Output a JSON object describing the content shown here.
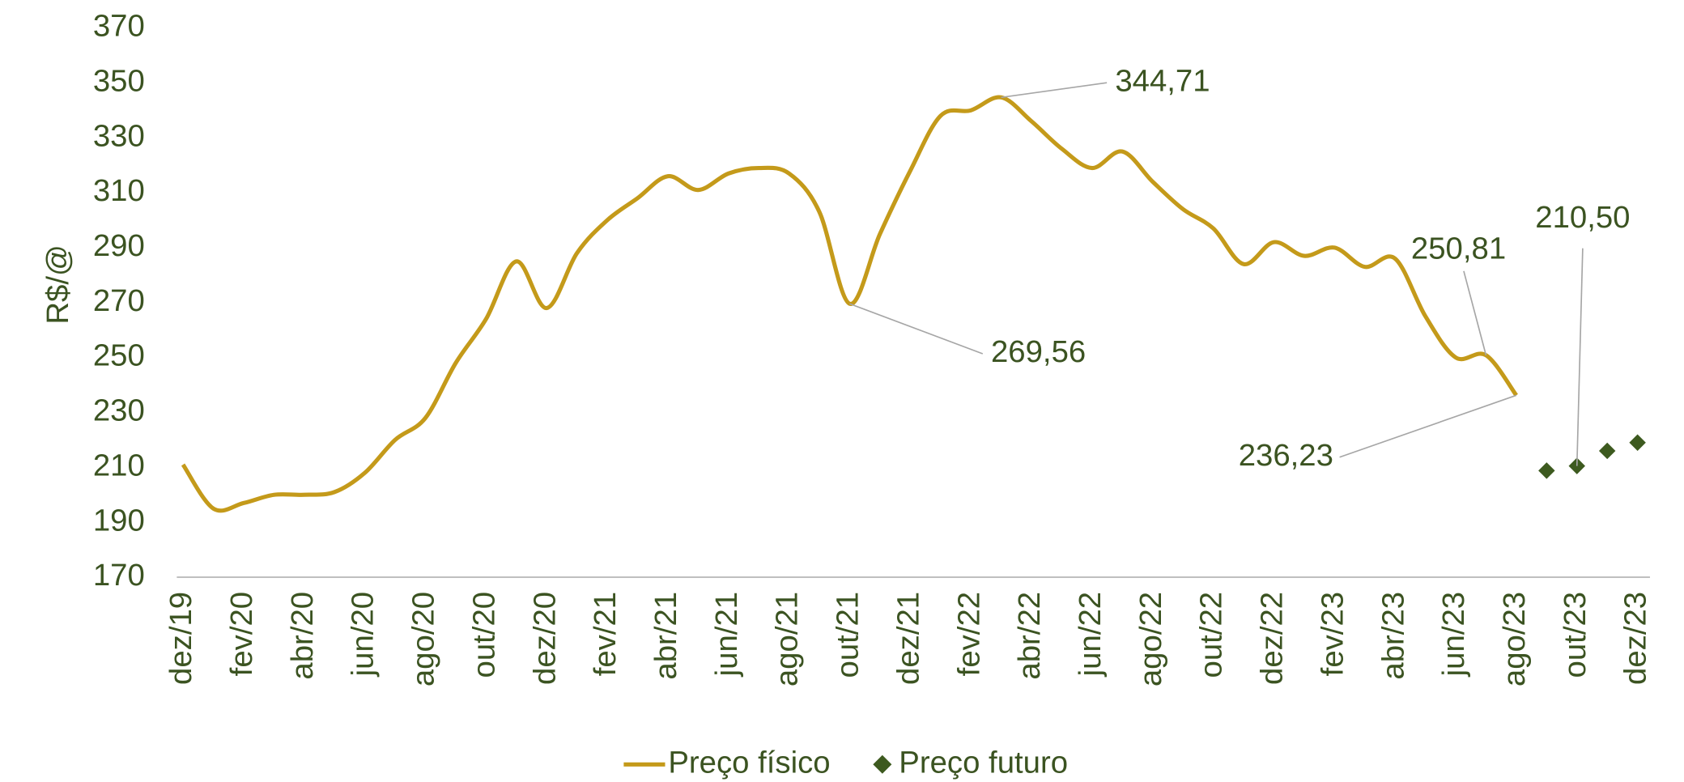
{
  "chart_data": {
    "type": "line",
    "y_label": "R$/@",
    "categories": [
      "dez/19",
      null,
      "fev/20",
      null,
      "abr/20",
      null,
      "jun/20",
      null,
      "ago/20",
      null,
      "out/20",
      null,
      "dez/20",
      null,
      "fev/21",
      null,
      "abr/21",
      null,
      "jun/21",
      null,
      "ago/21",
      null,
      "out/21",
      null,
      "dez/21",
      null,
      "fev/22",
      null,
      "abr/22",
      null,
      "jun/22",
      null,
      "ago/22",
      null,
      "out/22",
      null,
      "dez/22",
      null,
      "fev/23",
      null,
      "abr/23",
      null,
      "jun/23",
      null,
      "ago/23",
      null,
      "out/23",
      null,
      "dez/23"
    ],
    "series": [
      {
        "name": "Preço físico",
        "color": "#c49a1a",
        "marker": "line",
        "values": [
          211,
          195,
          197,
          200,
          200,
          201,
          208,
          220,
          228,
          248,
          264,
          285,
          268,
          288,
          300,
          308,
          316,
          311,
          317,
          319,
          317,
          303,
          269.56,
          295,
          318,
          338,
          340,
          344.71,
          336,
          326,
          319,
          325,
          314,
          304,
          297,
          284,
          292,
          287,
          290,
          283,
          286,
          265,
          250,
          250.81,
          236.23,
          null,
          null,
          null,
          null
        ],
        "value_labels": [
          null,
          null,
          null,
          null,
          null,
          null,
          null,
          null,
          null,
          null,
          null,
          null,
          null,
          null,
          null,
          null,
          null,
          null,
          null,
          null,
          null,
          null,
          "269,56",
          null,
          null,
          null,
          null,
          "344,71",
          null,
          null,
          null,
          null,
          null,
          null,
          null,
          null,
          null,
          null,
          null,
          null,
          null,
          null,
          null,
          "250,81",
          "236,23",
          null,
          null,
          null,
          null
        ]
      },
      {
        "name": "Preço futuro",
        "color": "#3d5a1f",
        "marker": "diamond",
        "values": [
          null,
          null,
          null,
          null,
          null,
          null,
          null,
          null,
          null,
          null,
          null,
          null,
          null,
          null,
          null,
          null,
          null,
          null,
          null,
          null,
          null,
          null,
          null,
          null,
          null,
          null,
          null,
          null,
          null,
          null,
          null,
          null,
          null,
          null,
          null,
          null,
          null,
          null,
          null,
          null,
          null,
          null,
          null,
          null,
          null,
          208.8,
          210.5,
          216,
          219
        ],
        "value_labels": [
          null,
          null,
          null,
          null,
          null,
          null,
          null,
          null,
          null,
          null,
          null,
          null,
          null,
          null,
          null,
          null,
          null,
          null,
          null,
          null,
          null,
          null,
          null,
          null,
          null,
          null,
          null,
          null,
          null,
          null,
          null,
          null,
          null,
          null,
          null,
          null,
          null,
          null,
          null,
          null,
          null,
          null,
          null,
          null,
          null,
          null,
          "210,50",
          null,
          null
        ]
      }
    ],
    "ylim": [
      170,
      370
    ],
    "yticks": [
      170,
      190,
      210,
      230,
      250,
      270,
      290,
      310,
      330,
      350,
      370
    ],
    "grid": false,
    "legend": "bottom"
  }
}
